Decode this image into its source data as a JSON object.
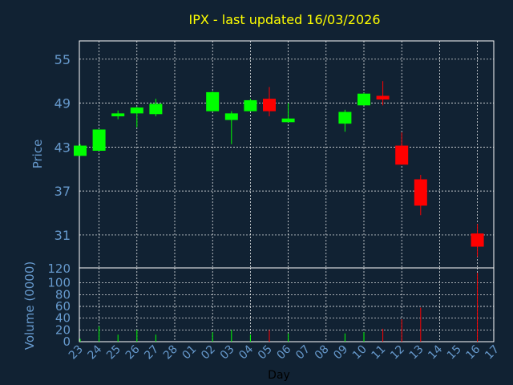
{
  "chart_data": [
    {
      "type": "candlestick",
      "title": "IPX - last updated 16/03/2026",
      "ylabel": "Price",
      "xlabel": "",
      "ylim": [
        26.5,
        57.5
      ],
      "yticks": [
        55,
        49,
        43,
        37,
        31
      ],
      "grid": true,
      "x": [
        "23",
        "24",
        "25",
        "26",
        "27",
        "28",
        "01",
        "02",
        "03",
        "04",
        "05",
        "06",
        "07",
        "08",
        "09",
        "10",
        "11",
        "12",
        "13",
        "14",
        "15",
        "16",
        "17"
      ],
      "candles": [
        {
          "day": "23",
          "open": 41.8,
          "high": 43.4,
          "low": 41.8,
          "close": 43.2
        },
        {
          "day": "24",
          "open": 42.5,
          "high": 45.4,
          "low": 42.5,
          "close": 45.4
        },
        {
          "day": "25",
          "open": 47.2,
          "high": 48.0,
          "low": 46.8,
          "close": 47.6
        },
        {
          "day": "26",
          "open": 47.6,
          "high": 48.5,
          "low": 45.7,
          "close": 48.4
        },
        {
          "day": "27",
          "open": 47.5,
          "high": 49.6,
          "low": 47.2,
          "close": 48.9
        },
        {
          "day": "02",
          "open": 47.9,
          "high": 50.6,
          "low": 47.9,
          "close": 50.5
        },
        {
          "day": "03",
          "open": 46.7,
          "high": 47.9,
          "low": 43.4,
          "close": 47.6
        },
        {
          "day": "04",
          "open": 47.9,
          "high": 49.6,
          "low": 47.9,
          "close": 49.4
        },
        {
          "day": "05",
          "open": 49.6,
          "high": 51.2,
          "low": 47.2,
          "close": 47.9
        },
        {
          "day": "06",
          "open": 46.4,
          "high": 49.0,
          "low": 46.4,
          "close": 46.9
        },
        {
          "day": "09",
          "open": 46.2,
          "high": 48.1,
          "low": 45.1,
          "close": 47.8
        },
        {
          "day": "10",
          "open": 48.7,
          "high": 50.4,
          "low": 48.7,
          "close": 50.3
        },
        {
          "day": "11",
          "open": 50.0,
          "high": 52.0,
          "low": 48.7,
          "close": 49.5
        },
        {
          "day": "12",
          "open": 43.2,
          "high": 45.0,
          "low": 40.6,
          "close": 40.6
        },
        {
          "day": "13",
          "open": 38.6,
          "high": 39.2,
          "low": 33.7,
          "close": 35.0
        },
        {
          "day": "16",
          "open": 31.2,
          "high": 32.5,
          "low": 28.0,
          "close": 29.4
        }
      ],
      "colors": {
        "up": "#00ff00",
        "down": "#ff0000"
      }
    },
    {
      "type": "bar",
      "ylabel": "Volume (0000)",
      "xlabel": "Day",
      "ylim": [
        0,
        120
      ],
      "yticks": [
        120,
        100,
        80,
        60,
        40,
        20,
        0
      ],
      "grid": true,
      "categories": [
        "23",
        "24",
        "25",
        "26",
        "27",
        "02",
        "03",
        "04",
        "05",
        "06",
        "09",
        "10",
        "11",
        "12",
        "13",
        "16"
      ],
      "values": [
        5,
        26,
        12,
        20,
        12,
        16,
        20,
        12,
        20,
        14,
        14,
        16,
        22,
        38,
        58,
        117
      ],
      "bar_colors": [
        "up",
        "up",
        "up",
        "up",
        "up",
        "up",
        "up",
        "up",
        "down",
        "up",
        "up",
        "up",
        "down",
        "down",
        "down",
        "down"
      ]
    }
  ]
}
